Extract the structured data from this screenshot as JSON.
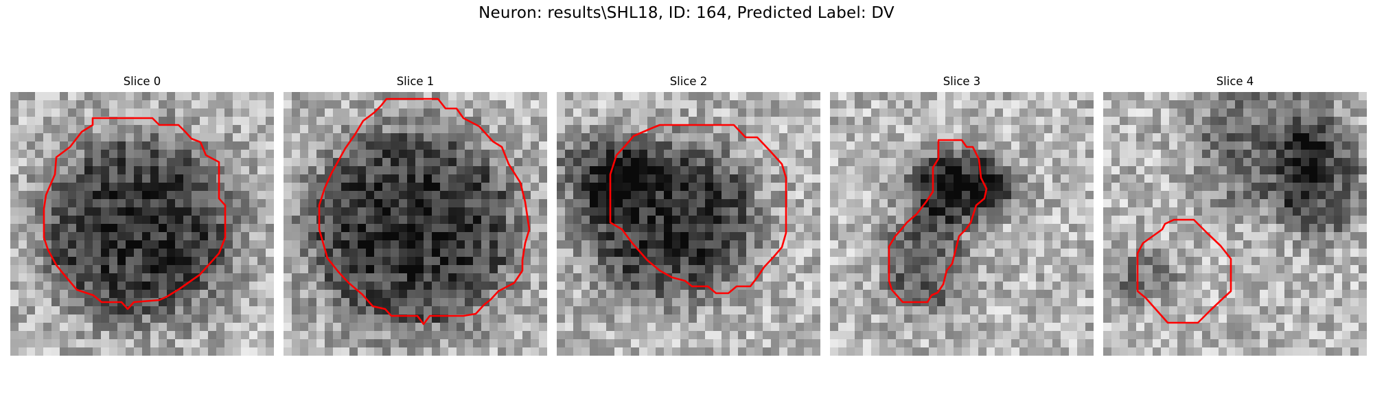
{
  "figure": {
    "title": "Neuron: results\\SHL18, ID: 164, Predicted Label: DV",
    "contour_color": "#ff0000",
    "colormap": "gray"
  },
  "panels": [
    {
      "title": "Slice 0"
    },
    {
      "title": "Slice 1"
    },
    {
      "title": "Slice 2"
    },
    {
      "title": "Slice 3"
    },
    {
      "title": "Slice 4"
    }
  ]
}
